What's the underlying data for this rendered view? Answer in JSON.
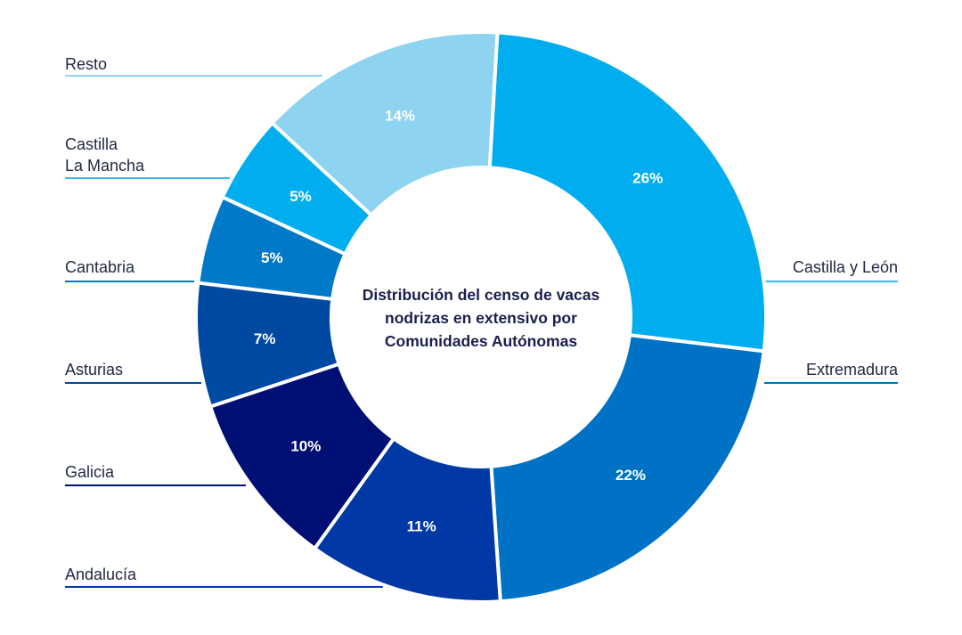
{
  "chart_data": {
    "type": "pie",
    "title_lines": [
      "Distribución del censo de vacas",
      "nodrizas en extensivo por",
      "Comunidades Autónomas"
    ],
    "slices": [
      {
        "label": [
          "Castilla y León"
        ],
        "value": 26,
        "value_label": "26%",
        "color": "#00aeef",
        "line_color": "#33bdf1"
      },
      {
        "label": [
          "Extremadura"
        ],
        "value": 22,
        "value_label": "22%",
        "color": "#0072c6",
        "line_color": "#0072c6"
      },
      {
        "label": [
          "Andalucía"
        ],
        "value": 11,
        "value_label": "11%",
        "color": "#0039a6",
        "line_color": "#0039a6"
      },
      {
        "label": [
          "Galicia"
        ],
        "value": 10,
        "value_label": "10%",
        "color": "#000f73",
        "line_color": "#000f73"
      },
      {
        "label": [
          "Asturias"
        ],
        "value": 7,
        "value_label": "7%",
        "color": "#0049a3",
        "line_color": "#0049a3"
      },
      {
        "label": [
          "Cantabria"
        ],
        "value": 5,
        "value_label": "5%",
        "color": "#0079c8",
        "line_color": "#0079c8"
      },
      {
        "label": [
          "Castilla",
          "La Mancha"
        ],
        "value": 5,
        "value_label": "5%",
        "color": "#00aeef",
        "line_color": "#33bdf1"
      },
      {
        "label": [
          "Resto"
        ],
        "value": 14,
        "value_label": "14%",
        "color": "#8ed3f0",
        "line_color": "#8ed3f0"
      }
    ]
  }
}
